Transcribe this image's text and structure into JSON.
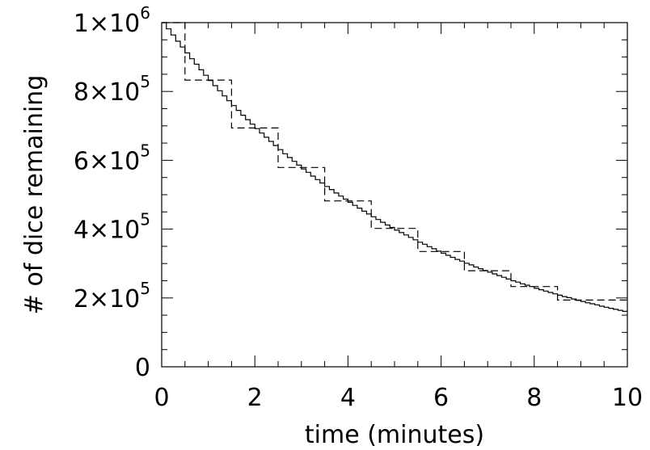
{
  "chart_data": {
    "type": "line",
    "xlabel": "time (minutes)",
    "ylabel": "# of dice remaining",
    "xlim": [
      0,
      10
    ],
    "ylim": [
      0,
      1000000
    ],
    "x_ticks": [
      {
        "value": 0,
        "label": "0"
      },
      {
        "value": 2,
        "label": "2"
      },
      {
        "value": 4,
        "label": "4"
      },
      {
        "value": 6,
        "label": "6"
      },
      {
        "value": 8,
        "label": "8"
      },
      {
        "value": 10,
        "label": "10"
      }
    ],
    "y_ticks": [
      {
        "value": 0,
        "mantissa": "0",
        "exponent": ""
      },
      {
        "value": 200000,
        "mantissa": "2×10",
        "exponent": "5"
      },
      {
        "value": 400000,
        "mantissa": "4×10",
        "exponent": "5"
      },
      {
        "value": 600000,
        "mantissa": "6×10",
        "exponent": "5"
      },
      {
        "value": 800000,
        "mantissa": "8×10",
        "exponent": "5"
      },
      {
        "value": 1000000,
        "mantissa": "1×10",
        "exponent": "6"
      }
    ],
    "x_minor_step": 0.5,
    "y_minor_step": 50000,
    "grid": false,
    "series": [
      {
        "style": "solid-step",
        "x": [
          0,
          0.1,
          0.2,
          0.3,
          0.4,
          0.5,
          0.6,
          0.7,
          0.8,
          0.9,
          1.0,
          1.1,
          1.2,
          1.3,
          1.4,
          1.5,
          1.6,
          1.7,
          1.8,
          1.9,
          2.0,
          2.1,
          2.2,
          2.3,
          2.4,
          2.5,
          2.6,
          2.7,
          2.8,
          2.9,
          3.0,
          3.1,
          3.2,
          3.3,
          3.4,
          3.5,
          3.6,
          3.7,
          3.8,
          3.9,
          4.0,
          4.1,
          4.2,
          4.3,
          4.4,
          4.5,
          4.6,
          4.7,
          4.8,
          4.9,
          5.0,
          5.1,
          5.2,
          5.3,
          5.4,
          5.5,
          5.6,
          5.7,
          5.8,
          5.9,
          6.0,
          6.1,
          6.2,
          6.3,
          6.4,
          6.5,
          6.6,
          6.7,
          6.8,
          6.9,
          7.0,
          7.1,
          7.2,
          7.3,
          7.4,
          7.5,
          7.6,
          7.7,
          7.8,
          7.9,
          8.0,
          8.1,
          8.2,
          8.3,
          8.4,
          8.5,
          8.6,
          8.7,
          8.8,
          8.9,
          9.0,
          9.1,
          9.2,
          9.3,
          9.4,
          9.5,
          9.6,
          9.7,
          9.8,
          9.9
        ],
        "values": [
          1000000,
          982000,
          964000,
          946000,
          929000,
          912000,
          895000,
          879000,
          863000,
          847000,
          832000,
          817000,
          802000,
          787000,
          773000,
          759000,
          745000,
          731000,
          718000,
          705000,
          692000,
          679000,
          667000,
          655000,
          643000,
          631000,
          619000,
          608000,
          597000,
          586000,
          575000,
          565000,
          554000,
          544000,
          534000,
          524000,
          515000,
          505000,
          496000,
          487000,
          478000,
          469000,
          461000,
          452000,
          444000,
          436000,
          428000,
          420000,
          412000,
          405000,
          397000,
          390000,
          383000,
          376000,
          369000,
          362000,
          356000,
          349000,
          343000,
          336000,
          330000,
          324000,
          318000,
          312000,
          307000,
          301000,
          296000,
          290000,
          285000,
          280000,
          275000,
          270000,
          265000,
          260000,
          255000,
          250000,
          246000,
          241000,
          237000,
          233000,
          228000,
          224000,
          220000,
          216000,
          212000,
          208000,
          204000,
          201000,
          197000,
          193000,
          190000,
          186000,
          183000,
          180000,
          176000,
          173000,
          170000,
          167000,
          164000,
          161000
        ]
      },
      {
        "style": "dashed-step",
        "x": [
          0,
          0.5,
          1.5,
          2.5,
          3.5,
          4.5,
          5.5,
          6.5,
          7.5,
          8.5
        ],
        "values": [
          1000000,
          833000,
          694000,
          579000,
          482000,
          402000,
          335000,
          279000,
          233000,
          194000
        ]
      }
    ]
  }
}
